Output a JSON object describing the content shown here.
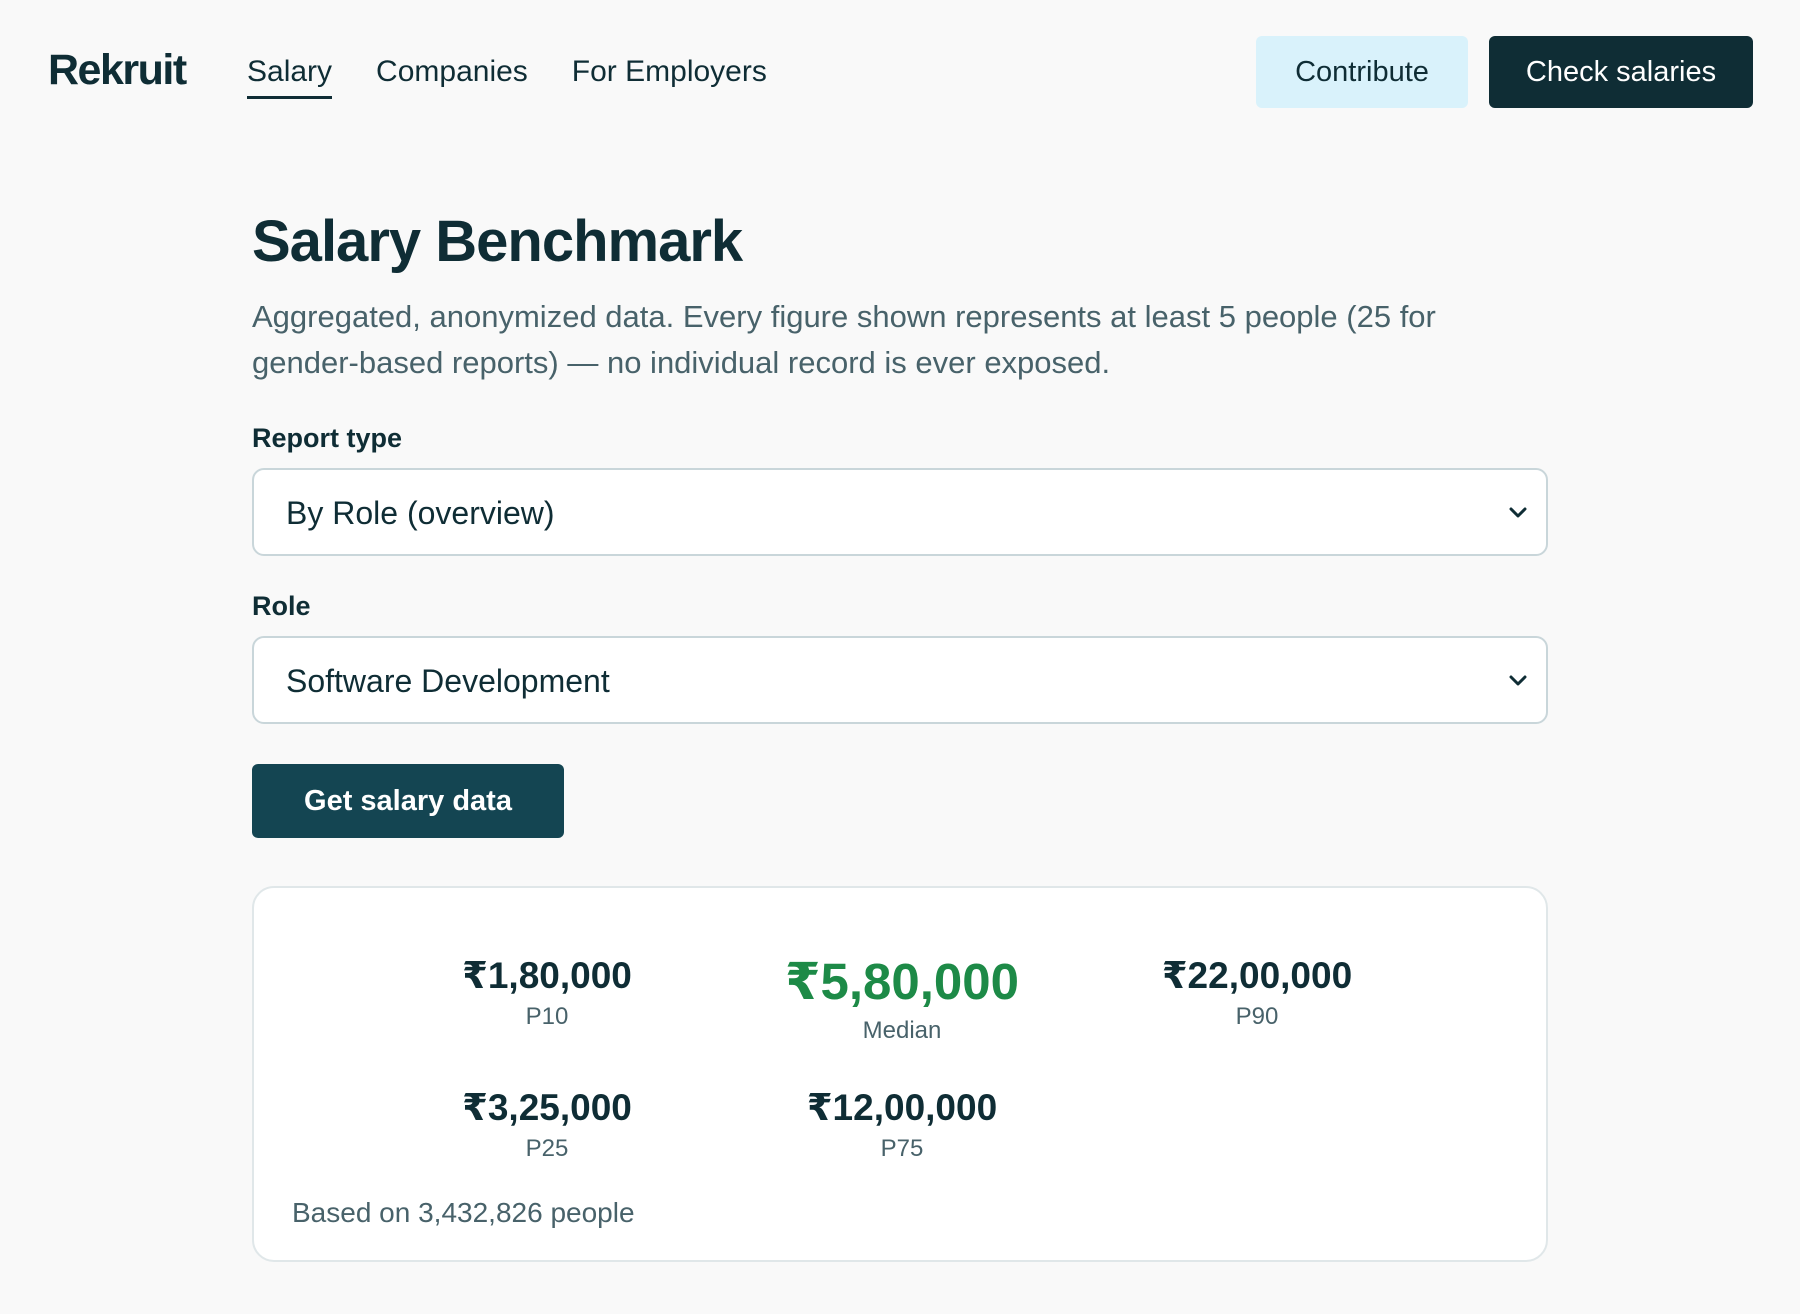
{
  "brand": {
    "logo": "Rekruit"
  },
  "nav": {
    "items": [
      {
        "label": "Salary",
        "active": true
      },
      {
        "label": "Companies",
        "active": false
      },
      {
        "label": "For Employers",
        "active": false
      }
    ]
  },
  "header_actions": {
    "contribute": "Contribute",
    "check_salaries": "Check salaries"
  },
  "page": {
    "title": "Salary Benchmark",
    "description": "Aggregated, anonymized data. Every figure shown represents at least 5 people (25 for gender-based reports) — no individual record is ever exposed."
  },
  "form": {
    "report_type": {
      "label": "Report type",
      "value": "By Role (overview)"
    },
    "role": {
      "label": "Role",
      "value": "Software Development"
    },
    "submit_label": "Get salary data"
  },
  "results": {
    "p10": {
      "amount": "₹1,80,000",
      "label": "P10"
    },
    "median": {
      "amount": "₹5,80,000",
      "label": "Median"
    },
    "p90": {
      "amount": "₹22,00,000",
      "label": "P90"
    },
    "p25": {
      "amount": "₹3,25,000",
      "label": "P25"
    },
    "p75": {
      "amount": "₹12,00,000",
      "label": "P75"
    },
    "sample": "Based on 3,432,826 people"
  },
  "colors": {
    "primary": "#0f2d35",
    "button": "#144552",
    "accent_green": "#1d8a47",
    "contribute_bg": "#d9f2fb"
  }
}
